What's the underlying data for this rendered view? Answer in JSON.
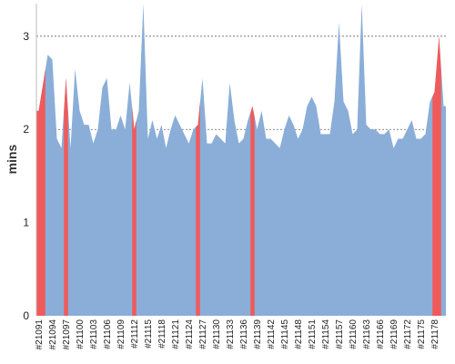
{
  "chart_data": {
    "type": "area",
    "ylabel": "mins",
    "xlabel": "",
    "ylim": [
      0,
      3.35
    ],
    "yticks": [
      0,
      1,
      2,
      3
    ],
    "grid": "horizontal dotted",
    "colors": {
      "normal": "#8aaed8",
      "failed": "#f05a5a",
      "grid": "#666666"
    },
    "x": [
      21091,
      21092,
      21093,
      21094,
      21095,
      21096,
      21097,
      21098,
      21099,
      21100,
      21101,
      21102,
      21103,
      21104,
      21105,
      21106,
      21107,
      21108,
      21109,
      21110,
      21111,
      21112,
      21113,
      21114,
      21115,
      21116,
      21117,
      21118,
      21119,
      21120,
      21121,
      21122,
      21123,
      21124,
      21125,
      21126,
      21127,
      21128,
      21129,
      21130,
      21131,
      21132,
      21133,
      21134,
      21135,
      21136,
      21137,
      21138,
      21139,
      21140,
      21141,
      21142,
      21143,
      21144,
      21145,
      21146,
      21147,
      21148,
      21149,
      21150,
      21151,
      21152,
      21153,
      21154,
      21155,
      21156,
      21157,
      21158,
      21159,
      21160,
      21161,
      21162,
      21163,
      21164,
      21165,
      21166,
      21167,
      21168,
      21169,
      21170,
      21171,
      21172,
      21173,
      21174,
      21175,
      21176,
      21177,
      21178,
      21179,
      21180
    ],
    "x_tick_labels": [
      "#21091",
      "#21094",
      "#21097",
      "#21100",
      "#21103",
      "#21106",
      "#21109",
      "#21112",
      "#21115",
      "#21118",
      "#21121",
      "#21124",
      "#21127",
      "#21130",
      "#21133",
      "#21136",
      "#21139",
      "#21142",
      "#21145",
      "#21148",
      "#21151",
      "#21154",
      "#21157",
      "#21160",
      "#21163",
      "#21166",
      "#21169",
      "#21172",
      "#21175",
      "#21178"
    ],
    "values": [
      2.2,
      2.5,
      2.8,
      2.75,
      1.9,
      1.8,
      2.55,
      1.8,
      2.65,
      2.2,
      2.05,
      2.05,
      1.85,
      2.0,
      2.45,
      2.55,
      2.0,
      2.0,
      2.15,
      2.0,
      2.5,
      2.0,
      2.2,
      3.4,
      1.9,
      2.1,
      1.9,
      2.05,
      1.8,
      2.0,
      2.15,
      2.05,
      1.95,
      1.85,
      2.0,
      2.05,
      2.55,
      1.85,
      1.85,
      1.95,
      1.9,
      1.85,
      2.5,
      2.1,
      1.85,
      1.9,
      2.1,
      2.25,
      2.0,
      2.2,
      1.9,
      1.9,
      1.85,
      1.8,
      2.0,
      2.15,
      2.05,
      1.9,
      2.0,
      2.25,
      2.35,
      2.25,
      1.95,
      1.95,
      1.95,
      2.3,
      3.15,
      2.3,
      2.2,
      1.95,
      2.0,
      3.4,
      2.05,
      2.0,
      2.0,
      1.95,
      1.95,
      2.0,
      1.8,
      1.9,
      1.9,
      2.0,
      2.1,
      1.9,
      1.9,
      1.95,
      2.3,
      2.4,
      3.0,
      2.25
    ],
    "failed_builds": [
      21091,
      21092,
      21097,
      21112,
      21126,
      21138,
      21178,
      21179
    ]
  }
}
